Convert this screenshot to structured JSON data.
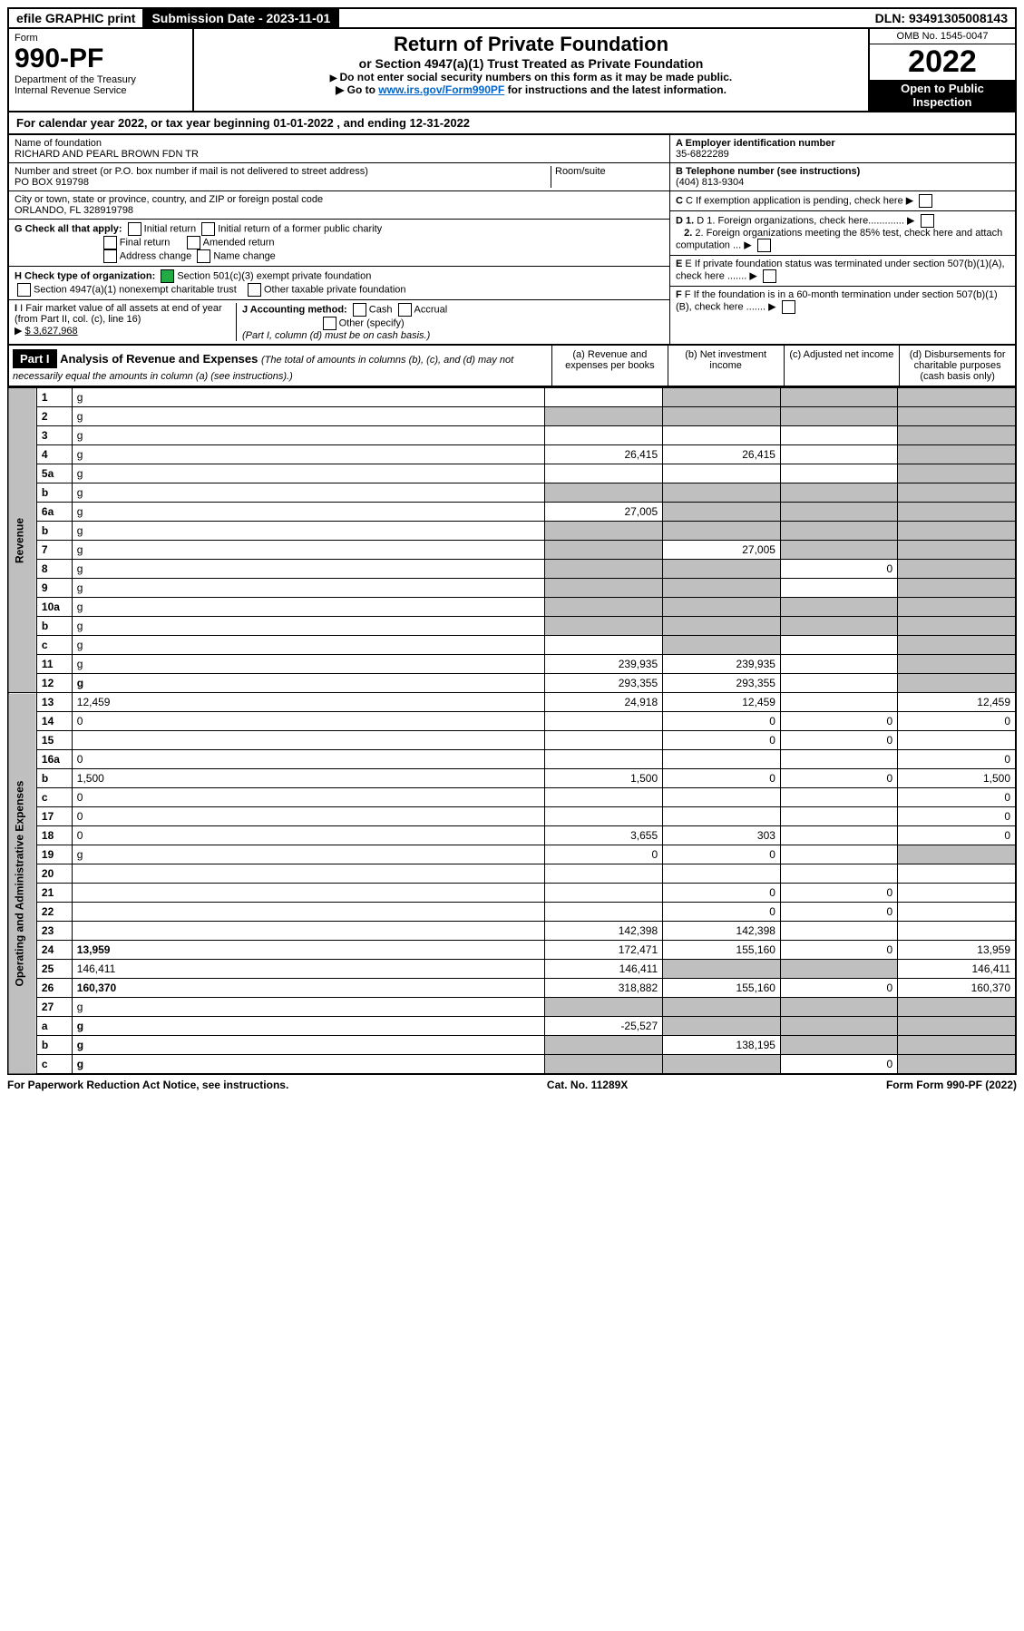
{
  "top_bar": {
    "efile": "efile GRAPHIC print",
    "submission": "Submission Date - 2023-11-01",
    "dln": "DLN: 93491305008143"
  },
  "header": {
    "form_label": "Form",
    "form_number": "990-PF",
    "dept": "Department of the Treasury",
    "irs": "Internal Revenue Service",
    "title": "Return of Private Foundation",
    "subtitle": "or Section 4947(a)(1) Trust Treated as Private Foundation",
    "note1": "Do not enter social security numbers on this form as it may be made public.",
    "note2_pre": "Go to ",
    "note2_link": "www.irs.gov/Form990PF",
    "note2_post": " for instructions and the latest information.",
    "omb": "OMB No. 1545-0047",
    "year": "2022",
    "open": "Open to Public",
    "inspection": "Inspection"
  },
  "cal_year": {
    "prefix": "For calendar year 2022, or tax year beginning ",
    "begin": "01-01-2022",
    "mid": " , and ending ",
    "end": "12-31-2022"
  },
  "entity": {
    "name_label": "Name of foundation",
    "name": "RICHARD AND PEARL BROWN FDN TR",
    "addr_label": "Number and street (or P.O. box number if mail is not delivered to street address)",
    "addr": "PO BOX 919798",
    "room_label": "Room/suite",
    "city_label": "City or town, state or province, country, and ZIP or foreign postal code",
    "city": "ORLANDO, FL  328919798",
    "a_label": "A Employer identification number",
    "ein": "35-6822289",
    "b_label": "B Telephone number (see instructions)",
    "phone": "(404) 813-9304",
    "c_label": "C If exemption application is pending, check here",
    "d1_label": "D 1. Foreign organizations, check here.............",
    "d2_label": "2. Foreign organizations meeting the 85% test, check here and attach computation ...",
    "e_label": "E  If private foundation status was terminated under section 507(b)(1)(A), check here .......",
    "f_label": "F  If the foundation is in a 60-month termination under section 507(b)(1)(B), check here ......."
  },
  "g": {
    "label": "G Check all that apply:",
    "initial": "Initial return",
    "initial_former": "Initial return of a former public charity",
    "final": "Final return",
    "amended": "Amended return",
    "address": "Address change",
    "name_change": "Name change"
  },
  "h": {
    "label": "H Check type of organization:",
    "501c3": "Section 501(c)(3) exempt private foundation",
    "4947": "Section 4947(a)(1) nonexempt charitable trust",
    "other": "Other taxable private foundation"
  },
  "i": {
    "label": "I Fair market value of all assets at end of year (from Part II, col. (c), line 16)",
    "value": "$  3,627,968"
  },
  "j": {
    "label": "J Accounting method:",
    "cash": "Cash",
    "accrual": "Accrual",
    "other": "Other (specify)",
    "note": "(Part I, column (d) must be on cash basis.)"
  },
  "part1": {
    "label": "Part I",
    "title": "Analysis of Revenue and Expenses",
    "note": "(The total of amounts in columns (b), (c), and (d) may not necessarily equal the amounts in column (a) (see instructions).)",
    "col_a": "(a)   Revenue and expenses per books",
    "col_b": "(b)   Net investment income",
    "col_c": "(c)   Adjusted net income",
    "col_d": "(d)   Disbursements for charitable purposes (cash basis only)"
  },
  "side_rev": "Revenue",
  "side_op": "Operating and Administrative Expenses",
  "rows": [
    {
      "n": "1",
      "d": "g",
      "a": "",
      "b": "g",
      "c": "g"
    },
    {
      "n": "2",
      "d": "g",
      "a": "g",
      "b": "g",
      "c": "g"
    },
    {
      "n": "3",
      "d": "g",
      "a": "",
      "b": "",
      "c": ""
    },
    {
      "n": "4",
      "d": "g",
      "a": "26,415",
      "b": "26,415",
      "c": ""
    },
    {
      "n": "5a",
      "d": "g",
      "a": "",
      "b": "",
      "c": ""
    },
    {
      "n": "b",
      "d": "g",
      "a": "g",
      "b": "g",
      "c": "g"
    },
    {
      "n": "6a",
      "d": "g",
      "a": "27,005",
      "b": "g",
      "c": "g"
    },
    {
      "n": "b",
      "d": "g",
      "a": "g",
      "b": "g",
      "c": "g"
    },
    {
      "n": "7",
      "d": "g",
      "a": "g",
      "b": "27,005",
      "c": "g"
    },
    {
      "n": "8",
      "d": "g",
      "a": "g",
      "b": "g",
      "c": "0"
    },
    {
      "n": "9",
      "d": "g",
      "a": "g",
      "b": "g",
      "c": ""
    },
    {
      "n": "10a",
      "d": "g",
      "a": "g",
      "b": "g",
      "c": "g"
    },
    {
      "n": "b",
      "d": "g",
      "a": "g",
      "b": "g",
      "c": "g"
    },
    {
      "n": "c",
      "d": "g",
      "a": "",
      "b": "g",
      "c": ""
    },
    {
      "n": "11",
      "d": "g",
      "a": "239,935",
      "b": "239,935",
      "c": ""
    },
    {
      "n": "12",
      "d": "g",
      "a": "293,355",
      "b": "293,355",
      "c": "",
      "bold": true
    },
    {
      "n": "13",
      "d": "12,459",
      "a": "24,918",
      "b": "12,459",
      "c": ""
    },
    {
      "n": "14",
      "d": "0",
      "a": "",
      "b": "0",
      "c": "0"
    },
    {
      "n": "15",
      "d": "",
      "a": "",
      "b": "0",
      "c": "0"
    },
    {
      "n": "16a",
      "d": "0",
      "a": "",
      "b": "",
      "c": ""
    },
    {
      "n": "b",
      "d": "1,500",
      "a": "1,500",
      "b": "0",
      "c": "0"
    },
    {
      "n": "c",
      "d": "0",
      "a": "",
      "b": "",
      "c": ""
    },
    {
      "n": "17",
      "d": "0",
      "a": "",
      "b": "",
      "c": ""
    },
    {
      "n": "18",
      "d": "0",
      "a": "3,655",
      "b": "303",
      "c": ""
    },
    {
      "n": "19",
      "d": "g",
      "a": "0",
      "b": "0",
      "c": ""
    },
    {
      "n": "20",
      "d": "",
      "a": "",
      "b": "",
      "c": ""
    },
    {
      "n": "21",
      "d": "",
      "a": "",
      "b": "0",
      "c": "0"
    },
    {
      "n": "22",
      "d": "",
      "a": "",
      "b": "0",
      "c": "0"
    },
    {
      "n": "23",
      "d": "",
      "a": "142,398",
      "b": "142,398",
      "c": ""
    },
    {
      "n": "24",
      "d": "13,959",
      "a": "172,471",
      "b": "155,160",
      "c": "0",
      "bold": true
    },
    {
      "n": "25",
      "d": "146,411",
      "a": "146,411",
      "b": "g",
      "c": "g"
    },
    {
      "n": "26",
      "d": "160,370",
      "a": "318,882",
      "b": "155,160",
      "c": "0",
      "bold": true
    },
    {
      "n": "27",
      "d": "g",
      "a": "g",
      "b": "g",
      "c": "g"
    },
    {
      "n": "a",
      "d": "g",
      "a": "-25,527",
      "b": "g",
      "c": "g",
      "bold": true
    },
    {
      "n": "b",
      "d": "g",
      "a": "g",
      "b": "138,195",
      "c": "g",
      "bold": true
    },
    {
      "n": "c",
      "d": "g",
      "a": "g",
      "b": "g",
      "c": "0",
      "bold": true
    }
  ],
  "footer": {
    "paperwork": "For Paperwork Reduction Act Notice, see instructions.",
    "cat": "Cat. No. 11289X",
    "form": "Form 990-PF (2022)"
  },
  "colors": {
    "black": "#000000",
    "grey": "#bfbfbf",
    "green": "#22aa44",
    "link": "#0066cc"
  }
}
